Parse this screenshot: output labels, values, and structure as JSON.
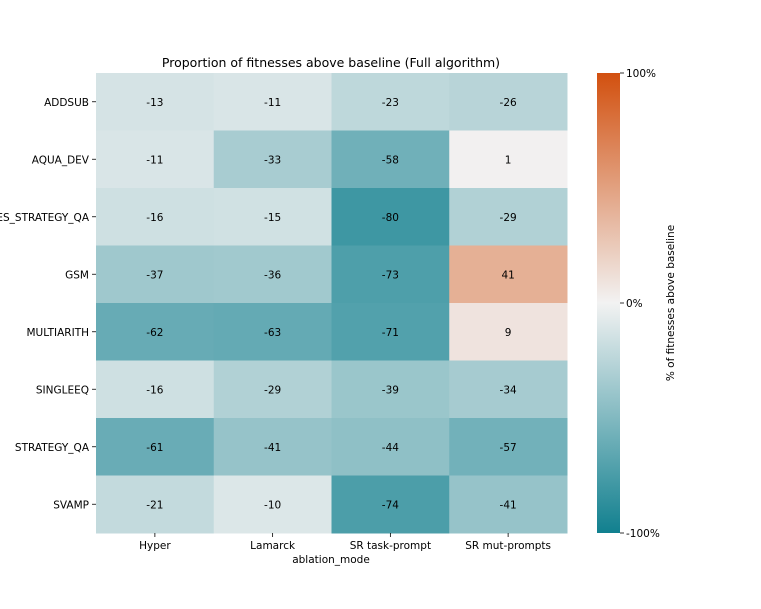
{
  "chart_data": {
    "type": "heatmap",
    "title": "Proportion of fitnesses above baseline (Full algorithm)",
    "xlabel": "ablation_mode",
    "ylabel": "",
    "columns": [
      "Hyper",
      "Lamarck",
      "SR task-prompt",
      "SR mut-prompts"
    ],
    "rows": [
      "ADDSUB",
      "AQUA_DEV",
      "ES_STRATEGY_QA",
      "GSM",
      "MULTIARITH",
      "SINGLEEQ",
      "STRATEGY_QA",
      "SVAMP"
    ],
    "values": [
      [
        -13,
        -11,
        -23,
        -26
      ],
      [
        -11,
        -33,
        -58,
        1
      ],
      [
        -16,
        -15,
        -80,
        -29
      ],
      [
        -37,
        -36,
        -73,
        41
      ],
      [
        -62,
        -63,
        -71,
        9
      ],
      [
        -16,
        -29,
        -39,
        -34
      ],
      [
        -61,
        -41,
        -44,
        -57
      ],
      [
        -21,
        -10,
        -74,
        -41
      ]
    ],
    "colorbar": {
      "label": "% of fitnesses above baseline",
      "range": [
        -100,
        100
      ],
      "ticks": [
        "100%",
        "0%",
        "-100%"
      ],
      "colors": {
        "low": "#11808f",
        "mid": "#f2f2f2",
        "high": "#d2500f"
      }
    }
  }
}
